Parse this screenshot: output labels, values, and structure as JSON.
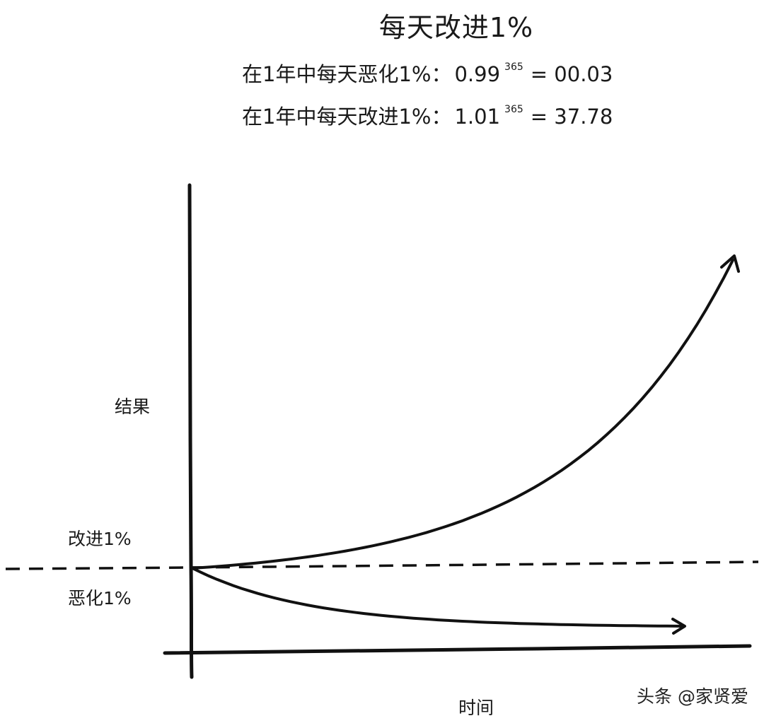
{
  "chart_data": {
    "type": "line",
    "title": "每天改进1%",
    "equations": [
      {
        "label": "在1年中每天恶化1%：",
        "base": "0.99",
        "exponent": "365",
        "result": "= 00.03"
      },
      {
        "label": "在1年中每天改进1%：",
        "base": "1.01",
        "exponent": "365",
        "result": "= 37.78"
      }
    ],
    "xlabel": "时间",
    "ylabel": "结果",
    "baseline_labels": {
      "above": "改进1%",
      "below": "恶化1%"
    },
    "series": [
      {
        "name": "改进1%",
        "rate": 1.01,
        "days": 365,
        "final_value": 37.78
      },
      {
        "name": "恶化1%",
        "rate": 0.99,
        "days": 365,
        "final_value": 0.03
      }
    ],
    "baseline": 1,
    "grid": false,
    "style": "hand-drawn",
    "line_color": "#111111"
  },
  "watermark": "头条 @家贤爱"
}
